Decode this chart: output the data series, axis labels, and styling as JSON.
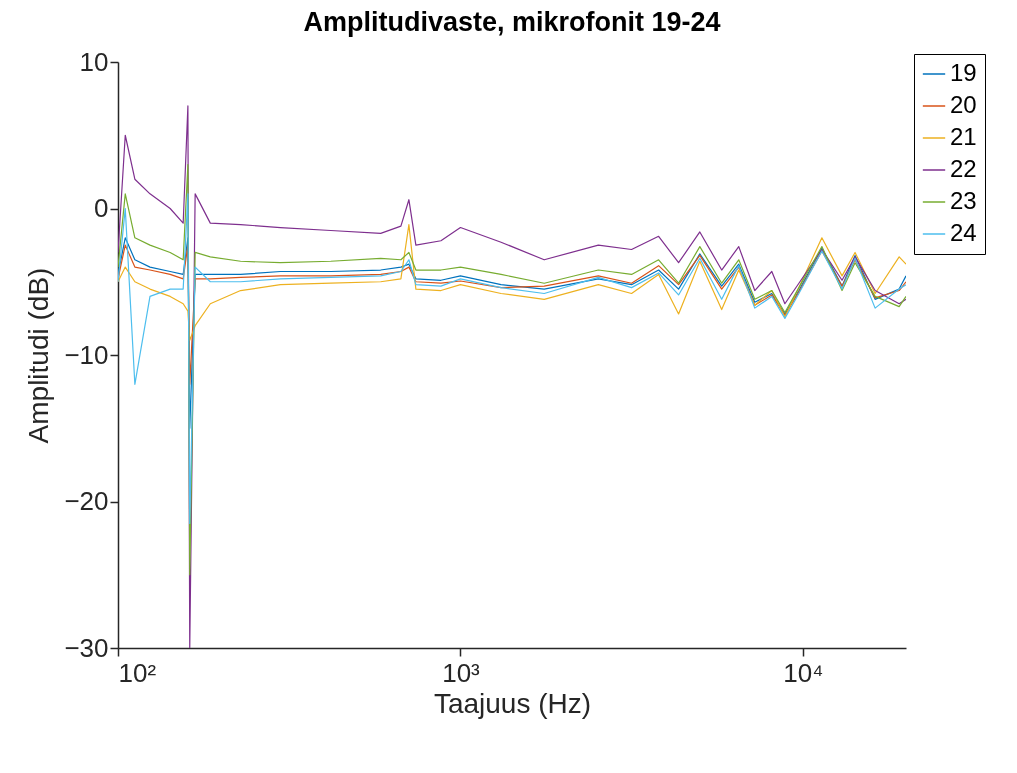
{
  "chart_data": {
    "type": "line",
    "title": "Amplitudivaste, mikrofonit 19-24",
    "xlabel": "Taajuus (Hz)",
    "ylabel": "Amplitudi (dB)",
    "log": "x",
    "legend": "top right",
    "xlim": [
      100,
      20000
    ],
    "ylim": [
      -30,
      10
    ],
    "xticks": [
      {
        "value": 100,
        "label": "10²"
      },
      {
        "value": 1000,
        "label": "10³"
      },
      {
        "value": 10000,
        "label": "10⁴"
      }
    ],
    "yticks": [
      -30,
      -20,
      -10,
      0,
      10
    ],
    "x": [
      100,
      105,
      112,
      124,
      142,
      155,
      160,
      162,
      168,
      186,
      228,
      298,
      418,
      585,
      670,
      707,
      741,
      877,
      1000,
      1314,
      1756,
      2527,
      3160,
      3790,
      4335,
      5000,
      5792,
      6496,
      7235,
      8113,
      8858,
      9734,
      11360,
      13010,
      14200,
      16250,
      19100,
      20000
    ],
    "series": [
      {
        "name": "19",
        "color": "#0072bd",
        "values": [
          -4.5,
          -2,
          -3.5,
          -4,
          -4.3,
          -4.5,
          -2,
          -15,
          -4.5,
          -4.5,
          -4.5,
          -4.3,
          -4.3,
          -4.2,
          -4.0,
          -3.8,
          -4.8,
          -4.9,
          -4.6,
          -5.2,
          -5.5,
          -4.8,
          -5.2,
          -4.2,
          -5.5,
          -3.1,
          -5.3,
          -3.8,
          -6.4,
          -5.8,
          -7.2,
          -5.6,
          -2.7,
          -5.3,
          -3.2,
          -6.2,
          -5.5,
          -4.6
        ]
      },
      {
        "name": "20",
        "color": "#d95319",
        "values": [
          -4.8,
          -2.5,
          -4,
          -4.2,
          -4.5,
          -4.8,
          -2.5,
          -12,
          -4.8,
          -4.8,
          -4.7,
          -4.6,
          -4.6,
          -4.5,
          -4.3,
          -4.0,
          -5.0,
          -5.1,
          -4.95,
          -5.4,
          -5.3,
          -4.6,
          -5.1,
          -3.9,
          -5.2,
          -3.2,
          -5.5,
          -4.0,
          -6.6,
          -5.9,
          -7.3,
          -5.7,
          -2.9,
          -5.3,
          -3.5,
          -6.1,
          -5.6,
          -5.0
        ]
      },
      {
        "name": "21",
        "color": "#edb120",
        "values": [
          -5,
          -4,
          -5,
          -5.5,
          -6,
          -6.5,
          -7,
          -9,
          -8,
          -6.5,
          -5.6,
          -5.2,
          -5.1,
          -5.0,
          -4.8,
          -1.1,
          -5.5,
          -5.6,
          -5.2,
          -5.8,
          -6.2,
          -5.2,
          -5.8,
          -4.5,
          -7.2,
          -3.6,
          -6.9,
          -4.2,
          -6.6,
          -5.6,
          -7.4,
          -5.4,
          -2.0,
          -4.6,
          -3.0,
          -5.8,
          -3.3,
          -3.8
        ]
      },
      {
        "name": "22",
        "color": "#7e2f8e",
        "values": [
          -3,
          5,
          2,
          1,
          0,
          -1,
          7,
          -30,
          1,
          -1,
          -1.1,
          -1.3,
          -1.5,
          -1.7,
          -1.2,
          0.6,
          -2.5,
          -2.2,
          -1.3,
          -2.3,
          -3.5,
          -2.5,
          -2.8,
          -1.9,
          -3.7,
          -1.6,
          -4.2,
          -2.6,
          -5.6,
          -4.3,
          -6.5,
          -5.1,
          -2.8,
          -4.9,
          -3.3,
          -5.6,
          -6.5,
          -6.2
        ]
      },
      {
        "name": "23",
        "color": "#77ac30",
        "values": [
          -4,
          1,
          -2,
          -2.5,
          -3,
          -3.5,
          3,
          -25,
          -3,
          -3.3,
          -3.6,
          -3.7,
          -3.6,
          -3.4,
          -3.5,
          -3.0,
          -4.2,
          -4.2,
          -4.0,
          -4.5,
          -5.1,
          -4.2,
          -4.5,
          -3.5,
          -5.1,
          -2.6,
          -5.1,
          -3.5,
          -6.2,
          -5.6,
          -7.1,
          -5.4,
          -2.6,
          -5.6,
          -3.7,
          -6.0,
          -6.7,
          -6.0
        ]
      },
      {
        "name": "24",
        "color": "#4dbeee",
        "values": [
          -5,
          0,
          -12,
          -6,
          -5.5,
          -5.5,
          1,
          -21.5,
          -4,
          -5,
          -5,
          -4.8,
          -4.7,
          -4.6,
          -4.3,
          -3.5,
          -5.2,
          -5.3,
          -4.8,
          -5.4,
          -5.8,
          -4.7,
          -5.4,
          -4.4,
          -5.9,
          -3.4,
          -6.2,
          -3.9,
          -6.8,
          -6.0,
          -7.5,
          -5.8,
          -2.9,
          -5.5,
          -3.4,
          -6.8,
          -5.5,
          -5.2
        ]
      }
    ]
  }
}
